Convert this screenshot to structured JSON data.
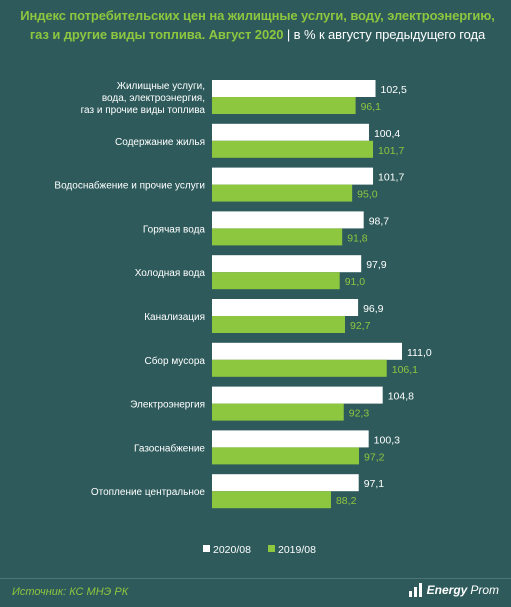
{
  "title": {
    "main": "Индекс потребительских цен на жилищные услуги, воду, электроэнергию, газ и другие виды топлива. Август 2020",
    "separator": "|",
    "unit": "в % к августу предыдущего года"
  },
  "source": "Источник: КС МНЭ РК",
  "logo": {
    "energy": "Energy",
    "prom": "Prom"
  },
  "colors": {
    "background": "#2e5a5b",
    "series_2020": "#ffffff",
    "series_2019": "#8dc63f"
  },
  "chart_data": {
    "type": "bar",
    "orientation": "horizontal",
    "categories": [
      "Жилищные услуги,\nвода, электроэнергия,\nгаз и прочие виды топлива",
      "Содержание жилья",
      "Водоснабжение и прочие услуги",
      "Горячая вода",
      "Холодная вода",
      "Канализация",
      "Сбор мусора",
      "Электроэнергия",
      "Газоснабжение",
      "Отопление центральное"
    ],
    "series": [
      {
        "name": "2020/08",
        "color": "#ffffff",
        "values": [
          102.5,
          100.4,
          101.7,
          98.7,
          97.9,
          96.9,
          111.0,
          104.8,
          100.3,
          97.1
        ],
        "labels": [
          "102,5",
          "100,4",
          "101,7",
          "98,7",
          "97,9",
          "96,9",
          "111,0",
          "104,8",
          "100,3",
          "97,1"
        ]
      },
      {
        "name": "2019/08",
        "color": "#8dc63f",
        "values": [
          96.1,
          101.7,
          95.0,
          91.8,
          91.0,
          92.7,
          106.1,
          92.3,
          97.2,
          88.2
        ],
        "labels": [
          "96,1",
          "101,7",
          "95,0",
          "91,8",
          "91,0",
          "92,7",
          "106,1",
          "92,3",
          "97,2",
          "88,2"
        ]
      }
    ],
    "legend": "bottom"
  }
}
